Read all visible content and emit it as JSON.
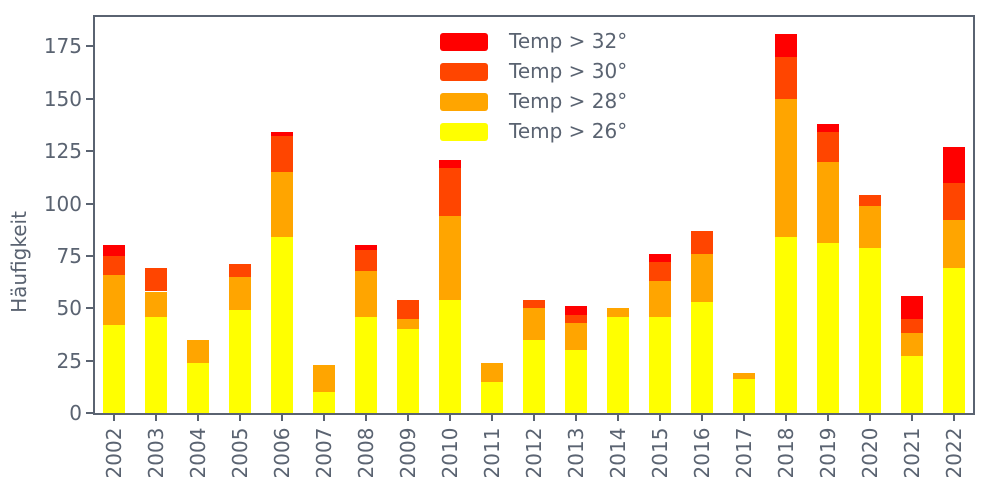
{
  "chart_data": {
    "type": "bar",
    "stacked": true,
    "title": "",
    "xlabel": "",
    "ylabel": "Häufigkeit",
    "categories": [
      "2002",
      "2003",
      "2004",
      "2005",
      "2006",
      "2007",
      "2008",
      "2009",
      "2010",
      "2011",
      "2012",
      "2013",
      "2014",
      "2015",
      "2016",
      "2017",
      "2018",
      "2019",
      "2020",
      "2021",
      "2022"
    ],
    "series": [
      {
        "name": "Temp > 26°",
        "color": "#ffff00",
        "values": [
          42,
          46,
          24,
          49,
          84,
          10,
          46,
          40,
          54,
          15,
          35,
          30,
          46,
          46,
          53,
          16,
          84,
          81,
          79,
          27,
          69
        ]
      },
      {
        "name": "Temp > 28°",
        "color": "#ffa500",
        "values": [
          24,
          12,
          11,
          16,
          31,
          13,
          22,
          5,
          40,
          9,
          15,
          13,
          4,
          17,
          23,
          3,
          66,
          39,
          20,
          11,
          23
        ]
      },
      {
        "name": "Temp > 30°",
        "color": "#ff4500",
        "values": [
          9,
          11,
          0,
          6,
          17,
          0,
          10,
          9,
          23,
          0,
          4,
          4,
          0,
          9,
          11,
          0,
          20,
          14,
          5,
          7,
          18
        ]
      },
      {
        "name": "Temp > 32°",
        "color": "#ff0000",
        "values": [
          5,
          0,
          0,
          0,
          2,
          0,
          2,
          0,
          4,
          0,
          0,
          4,
          0,
          4,
          0,
          0,
          11,
          4,
          0,
          11,
          17
        ]
      }
    ],
    "legend_order": [
      3,
      2,
      1,
      0
    ],
    "legend_position": "upper center, inside plot, no frame",
    "yticks": [
      0,
      25,
      50,
      75,
      100,
      125,
      150,
      175
    ],
    "ylim": [
      0,
      190
    ],
    "grid": false
  },
  "style": {
    "text_color": "#5a6371",
    "axis_color": "#5a6371",
    "background": "#ffffff"
  }
}
